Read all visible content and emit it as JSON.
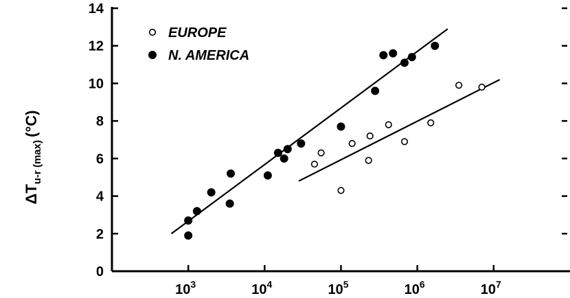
{
  "chart_data": {
    "type": "scatter",
    "title": "",
    "xlabel": "",
    "ylabel": {
      "main": "ΔT",
      "subscript": "u-r (max)",
      "unit": "(°C)"
    },
    "x_scale": "log",
    "xlim": [
      100,
      100000000
    ],
    "ylim": [
      0,
      14
    ],
    "x_ticks": [
      {
        "value": 1000,
        "base": "10",
        "exp": "3"
      },
      {
        "value": 10000,
        "base": "10",
        "exp": "4"
      },
      {
        "value": 100000,
        "base": "10",
        "exp": "5"
      },
      {
        "value": 1000000,
        "base": "10",
        "exp": "6"
      },
      {
        "value": 10000000,
        "base": "10",
        "exp": "7"
      }
    ],
    "y_ticks": [
      0,
      2,
      4,
      6,
      8,
      10,
      12,
      14
    ],
    "grid": false,
    "legend_position": "top-left",
    "series": [
      {
        "name": "EUROPE",
        "marker": "open-circle",
        "points": [
          [
            45000,
            5.7
          ],
          [
            55000,
            6.3
          ],
          [
            100000,
            4.3
          ],
          [
            140000,
            6.8
          ],
          [
            230000,
            5.9
          ],
          [
            240000,
            7.2
          ],
          [
            420000,
            7.8
          ],
          [
            680000,
            6.9
          ],
          [
            1500000,
            7.9
          ],
          [
            3500000,
            9.9
          ],
          [
            7000000,
            9.8
          ]
        ],
        "fit_line": [
          [
            28000,
            4.8
          ],
          [
            12000000,
            10.2
          ]
        ]
      },
      {
        "name": "N. AMERICA",
        "marker": "filled-circle",
        "points": [
          [
            1000,
            1.9
          ],
          [
            1000,
            2.7
          ],
          [
            1300,
            3.2
          ],
          [
            2000,
            4.2
          ],
          [
            3500,
            3.6
          ],
          [
            3600,
            5.2
          ],
          [
            11000,
            5.1
          ],
          [
            15000,
            6.3
          ],
          [
            18000,
            6.0
          ],
          [
            20000,
            6.5
          ],
          [
            30000,
            6.8
          ],
          [
            100000,
            7.7
          ],
          [
            280000,
            9.6
          ],
          [
            360000,
            11.5
          ],
          [
            480000,
            11.6
          ],
          [
            680000,
            11.1
          ],
          [
            850000,
            11.4
          ],
          [
            1700000,
            12.0
          ]
        ],
        "fit_line": [
          [
            600,
            2.0
          ],
          [
            2500000,
            12.9
          ]
        ]
      }
    ]
  }
}
